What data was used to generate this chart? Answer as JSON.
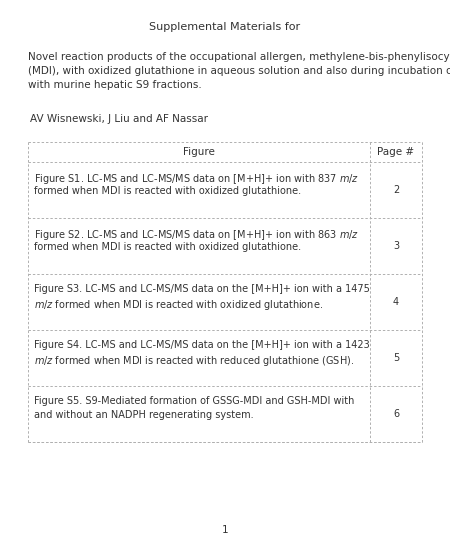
{
  "title": "Supplemental Materials for",
  "paper_title_lines": [
    "Novel reaction products of the occupational allergen, methylene-bis-phenylisocyanate",
    "(MDI), with oxidized glutathione in aqueous solution and also during incubation of MDI",
    "with murine hepatic S9 fractions."
  ],
  "authors": "AV Wisnewski, J Liu and AF Nassar",
  "table_header": [
    "Figure",
    "Page #"
  ],
  "table_rows": [
    {
      "line1": "Figure S1. LC-MS and LC-MS/MS data on [M+H]+ ion with 837 $m/z$",
      "line2": "formed when MDI is reacted with oxidized glutathione.",
      "page": "2"
    },
    {
      "line1": "Figure S2. LC-MS and LC-MS/MS data on [M+H]+ ion with 863 $m/z$",
      "line2": "formed when MDI is reacted with oxidized glutathione.",
      "page": "3"
    },
    {
      "line1": "Figure S3. LC-MS and LC-MS/MS data on the [M+H]+ ion with a 1475",
      "line2": "$m/z$ formed when MDI is reacted with oxidized glutathione.",
      "page": "4"
    },
    {
      "line1": "Figure S4. LC-MS and LC-MS/MS data on the [M+H]+ ion with a 1423",
      "line2": "$m/z$ formed when MDI is reacted with reduced glutathione (GSH).",
      "page": "5"
    },
    {
      "line1": "Figure S5. S9-Mediated formation of GSSG-MDI and GSH-MDI with",
      "line2": "and without an NADPH regenerating system.",
      "page": "6"
    }
  ],
  "footer_text": "1",
  "bg_color": "#ffffff",
  "text_color": "#333333",
  "table_border_color": "#b0b0b0",
  "font_size_title": 8.0,
  "font_size_paper_title": 7.5,
  "font_size_authors": 7.5,
  "font_size_table_header": 7.5,
  "font_size_table_body": 7.0,
  "font_size_footer": 7.5
}
